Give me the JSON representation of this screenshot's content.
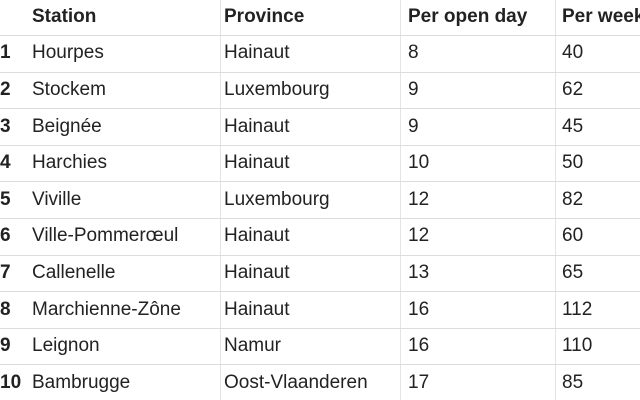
{
  "table": {
    "header": [
      "Station",
      "Province",
      "Per open day",
      "Per week"
    ],
    "rows": [
      [
        1,
        "Hourpes",
        "Hainaut",
        8,
        40
      ],
      [
        2,
        "Stockem",
        "Luxembourg",
        9,
        62
      ],
      [
        3,
        "Beignée",
        "Hainaut",
        9,
        45
      ],
      [
        4,
        "Harchies",
        "Hainaut",
        10,
        50
      ],
      [
        5,
        "Viville",
        "Luxembourg",
        12,
        82
      ],
      [
        6,
        "Ville-Pommerœul",
        "Hainaut",
        12,
        60
      ],
      [
        7,
        "Callenelle",
        "Hainaut",
        13,
        65
      ],
      [
        8,
        "Marchienne-Zône",
        "Hainaut",
        16,
        112
      ],
      [
        9,
        "Leignon",
        "Namur",
        16,
        110
      ],
      [
        10,
        "Bambrugge",
        "Oost-Vlaanderen",
        17,
        85
      ]
    ]
  }
}
